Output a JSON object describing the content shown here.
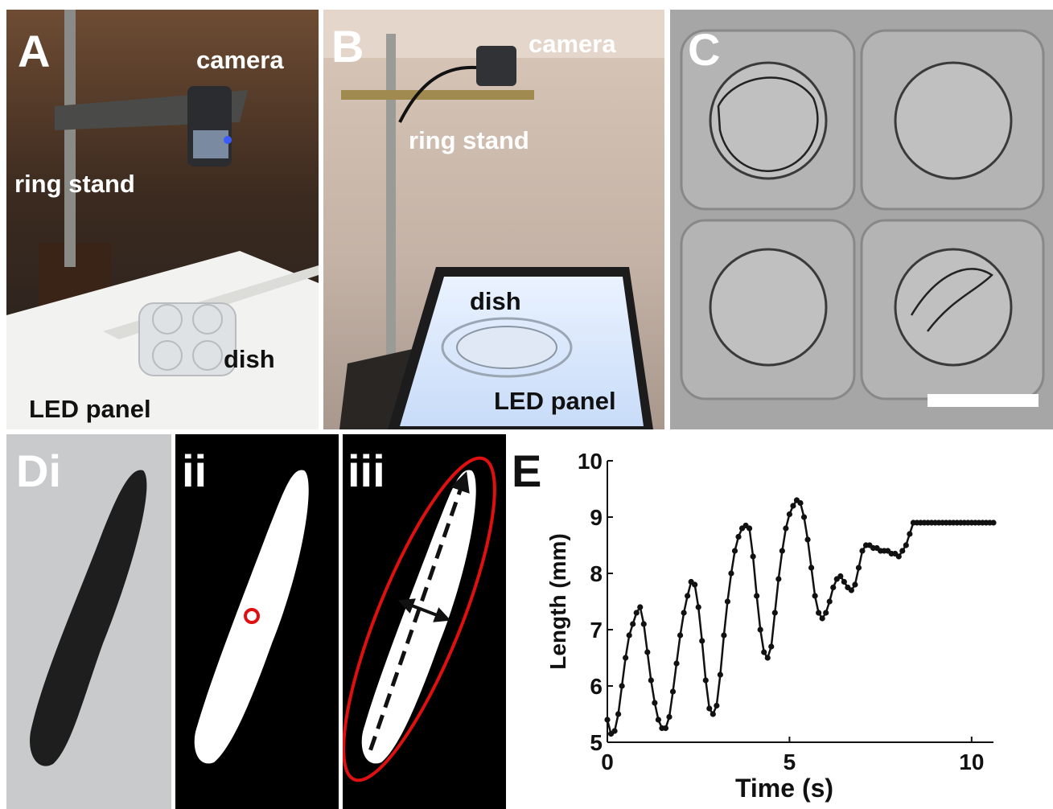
{
  "figure": {
    "panelA": {
      "letter": "A",
      "camera": "camera",
      "ring_stand": "ring stand",
      "dish": "dish",
      "led_panel": "LED panel"
    },
    "panelB": {
      "letter": "B",
      "camera": "camera",
      "ring_stand": "ring stand",
      "dish": "dish",
      "led_panel": "LED panel"
    },
    "panelC": {
      "letter": "C"
    },
    "panelD": {
      "i": "Di",
      "ii": "ii",
      "iii": "iii"
    },
    "panelE": {
      "letter": "E"
    }
  },
  "colors": {
    "outline": "#e01010",
    "centroid": "#e01010",
    "curve": "#111111"
  },
  "chart_data": {
    "type": "line",
    "title": "",
    "xlabel": "Time (s)",
    "ylabel": "Length (mm)",
    "xlim": [
      0,
      10.6
    ],
    "ylim": [
      5,
      10
    ],
    "xticks": [
      0,
      5,
      10
    ],
    "yticks": [
      5,
      6,
      7,
      8,
      9,
      10
    ],
    "grid": false,
    "series": [
      {
        "x": [
          0.0,
          0.1,
          0.2,
          0.3,
          0.4,
          0.5,
          0.6,
          0.7,
          0.8,
          0.9,
          1.0,
          1.1,
          1.2,
          1.3,
          1.4,
          1.5,
          1.6,
          1.7,
          1.8,
          1.9,
          2.0,
          2.1,
          2.2,
          2.3,
          2.4,
          2.5,
          2.6,
          2.7,
          2.8,
          2.9,
          3.0,
          3.1,
          3.2,
          3.3,
          3.4,
          3.5,
          3.6,
          3.7,
          3.8,
          3.9,
          4.0,
          4.1,
          4.2,
          4.3,
          4.4,
          4.5,
          4.6,
          4.7,
          4.8,
          4.9,
          5.0,
          5.1,
          5.2,
          5.3,
          5.4,
          5.5,
          5.6,
          5.7,
          5.8,
          5.9,
          6.0,
          6.1,
          6.2,
          6.3,
          6.4,
          6.5,
          6.6,
          6.7,
          6.8,
          6.9,
          7.0,
          7.1,
          7.2,
          7.3,
          7.4,
          7.5,
          7.6,
          7.7,
          7.8,
          7.9,
          8.0,
          8.1,
          8.2,
          8.3,
          8.4,
          8.5,
          8.6,
          8.7,
          8.8,
          8.9,
          9.0,
          9.1,
          9.2,
          9.3,
          9.4,
          9.5,
          9.6,
          9.7,
          9.8,
          9.9,
          10.0,
          10.1,
          10.2,
          10.3,
          10.4,
          10.5,
          10.6
        ],
        "y": [
          5.4,
          5.15,
          5.2,
          5.5,
          6.0,
          6.5,
          6.9,
          7.1,
          7.3,
          7.4,
          7.1,
          6.6,
          6.1,
          5.7,
          5.4,
          5.25,
          5.25,
          5.45,
          5.9,
          6.4,
          6.9,
          7.3,
          7.6,
          7.85,
          7.8,
          7.4,
          6.8,
          6.1,
          5.6,
          5.5,
          5.65,
          6.2,
          6.9,
          7.5,
          8.0,
          8.4,
          8.65,
          8.8,
          8.85,
          8.8,
          8.3,
          7.6,
          7.0,
          6.6,
          6.5,
          6.7,
          7.3,
          7.9,
          8.4,
          8.8,
          9.05,
          9.2,
          9.3,
          9.25,
          9.0,
          8.6,
          8.1,
          7.6,
          7.3,
          7.2,
          7.3,
          7.5,
          7.75,
          7.9,
          7.95,
          7.85,
          7.75,
          7.7,
          7.8,
          8.1,
          8.4,
          8.5,
          8.5,
          8.45,
          8.45,
          8.4,
          8.4,
          8.4,
          8.35,
          8.35,
          8.3,
          8.4,
          8.5,
          8.7,
          8.9,
          8.9,
          8.9,
          8.9,
          8.9,
          8.9,
          8.9,
          8.9,
          8.9,
          8.9,
          8.9,
          8.9,
          8.9,
          8.9,
          8.9,
          8.9,
          8.9,
          8.9,
          8.9,
          8.9,
          8.9,
          8.9,
          8.9
        ]
      }
    ]
  }
}
